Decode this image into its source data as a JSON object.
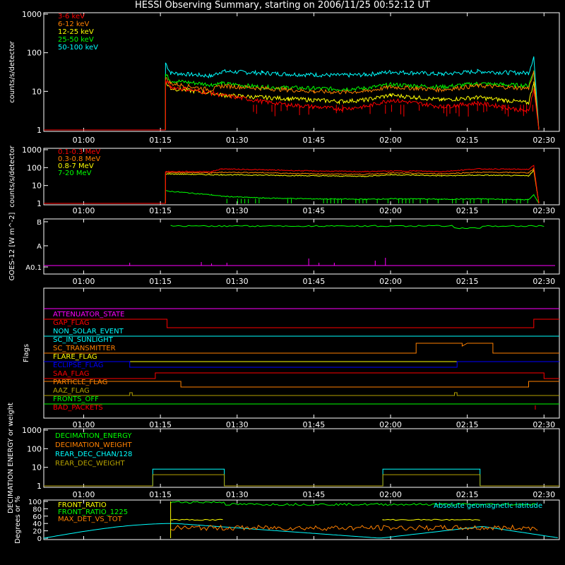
{
  "title": "HESSI Observing Summary, starting on 2006/11/25 00:52:12 UT",
  "time_ticks": [
    "01:00",
    "01:15",
    "01:30",
    "01:45",
    "02:00",
    "02:15",
    "02:30"
  ],
  "colors": {
    "red": "#ff0000",
    "orange": "#ff8000",
    "yellow": "#ffff00",
    "green": "#00ff00",
    "cyan": "#00ffff",
    "magenta": "#ff00ff",
    "blue": "#0000ff",
    "olive": "#b4a000",
    "white": "#ffffff",
    "purple": "#c000ff"
  },
  "chart_data": [
    {
      "type": "line",
      "title": "HESSI Observing Summary, starting on 2006/11/25 00:52:12 UT",
      "ylabel": "counts/s/detector",
      "yscale": "log",
      "ylim": [
        1,
        1000
      ],
      "yticks": [
        "1",
        "10",
        "100",
        "1000"
      ],
      "x": [
        "00:52",
        "01:16",
        "01:17",
        "01:25",
        "01:27",
        "01:35",
        "01:40",
        "01:45",
        "01:50",
        "01:55",
        "02:00",
        "02:05",
        "02:10",
        "02:17",
        "02:22",
        "02:27",
        "02:28",
        "02:29"
      ],
      "series": [
        {
          "name": "3-6 keV",
          "color": "red",
          "values": [
            null,
            20,
            13,
            9,
            8,
            5.5,
            4.5,
            4,
            3.5,
            4,
            6,
            5,
            4,
            5,
            4,
            3,
            12,
            1
          ]
        },
        {
          "name": "6-12 keV",
          "color": "orange",
          "values": [
            null,
            22,
            16,
            11,
            14,
            12,
            11,
            10,
            9.5,
            10,
            13,
            12,
            11,
            14,
            13,
            12,
            30,
            1
          ]
        },
        {
          "name": "12-25 keV",
          "color": "yellow",
          "values": [
            null,
            17,
            12,
            9,
            8,
            7,
            6.5,
            6,
            5.5,
            6,
            8,
            7,
            6,
            7,
            6,
            5,
            18,
            1
          ]
        },
        {
          "name": "25-50 keV",
          "color": "green",
          "values": [
            null,
            28,
            19,
            15,
            16,
            13,
            12.5,
            12,
            11.5,
            12,
            15,
            14,
            13,
            16,
            15,
            14,
            35,
            1
          ]
        },
        {
          "name": "50-100 keV",
          "color": "cyan",
          "values": [
            null,
            55,
            30,
            25,
            33,
            30,
            28,
            27,
            26,
            27,
            32,
            30,
            28,
            33,
            31,
            30,
            80,
            1
          ]
        }
      ]
    },
    {
      "type": "line",
      "ylabel": "counts/s/detector",
      "yscale": "log",
      "ylim": [
        1,
        1000
      ],
      "yticks": [
        "1",
        "10",
        "100",
        "1000"
      ],
      "x": [
        "00:52",
        "01:16",
        "01:25",
        "01:27",
        "01:35",
        "01:45",
        "01:55",
        "02:00",
        "02:05",
        "02:10",
        "02:17",
        "02:27",
        "02:28",
        "02:29"
      ],
      "series": [
        {
          "name": "0.1-0.3 MeV",
          "color": "red",
          "values": [
            null,
            60,
            60,
            85,
            75,
            65,
            60,
            65,
            65,
            60,
            85,
            80,
            130,
            1
          ]
        },
        {
          "name": "0.3-0.8 MeV",
          "color": "orange",
          "values": [
            null,
            55,
            50,
            55,
            52,
            45,
            42,
            50,
            48,
            45,
            55,
            52,
            90,
            1
          ]
        },
        {
          "name": "0.8-7 MeV",
          "color": "yellow",
          "values": [
            null,
            45,
            40,
            40,
            38,
            35,
            33,
            40,
            38,
            35,
            38,
            35,
            70,
            1
          ]
        },
        {
          "name": "7-20 MeV",
          "color": "green",
          "values": [
            null,
            5,
            3,
            2.5,
            2,
            1.8,
            1.7,
            1.8,
            1.8,
            1.7,
            1.8,
            1.6,
            3,
            1
          ]
        }
      ]
    },
    {
      "type": "line",
      "ylabel": "GOES-12 [W m^-2]",
      "yticks": [
        "A0.1",
        "A",
        "B"
      ],
      "series": [
        {
          "name": "GOES B-level",
          "color": "green"
        },
        {
          "name": "GOES A0.1-level",
          "color": "magenta"
        }
      ]
    },
    {
      "type": "table",
      "ylabel": "Flags",
      "flags": [
        {
          "name": "ATTENUATOR_STATE",
          "color": "magenta"
        },
        {
          "name": "GAP_FLAG",
          "color": "red"
        },
        {
          "name": "NON_SOLAR_EVENT",
          "color": "cyan"
        },
        {
          "name": "SC_IN_SUNLIGHT",
          "color": "cyan"
        },
        {
          "name": "SC_TRANSMITTER",
          "color": "orange"
        },
        {
          "name": "FLARE_FLAG",
          "color": "yellow"
        },
        {
          "name": "ECLIPSE_FLAG",
          "color": "blue"
        },
        {
          "name": "SAA_FLAG",
          "color": "red"
        },
        {
          "name": "PARTICLE_FLAG",
          "color": "orange"
        },
        {
          "name": "AAZ_FLAG",
          "color": "olive"
        },
        {
          "name": "FRONTS_OFF",
          "color": "green"
        },
        {
          "name": "BAD_PACKETS",
          "color": "red"
        }
      ]
    },
    {
      "type": "line",
      "ylabel": "DECIMATION ENERGY or weight",
      "yscale": "log",
      "ylim": [
        1,
        1000
      ],
      "yticks": [
        "1",
        "10",
        "100",
        "1000"
      ],
      "series": [
        {
          "name": "DECIMATION_ENERGY",
          "color": "green"
        },
        {
          "name": "DECIMATION_WEIGHT",
          "color": "orange"
        },
        {
          "name": "REAR_DEC_CHAN/128",
          "color": "cyan",
          "values_text": "8 during 01:14-01:28 and 01:59-02:18"
        },
        {
          "name": "REAR_DEC_WEIGHT",
          "color": "olive",
          "values_text": "4 during 01:14-01:28 and 01:59-02:18"
        }
      ]
    },
    {
      "type": "line",
      "ylabel": "Degrees or %",
      "ylim": [
        0,
        100
      ],
      "yticks": [
        "0",
        "20",
        "40",
        "60",
        "80",
        "100"
      ],
      "annotation": "Absolute geomagnetic latitude",
      "series": [
        {
          "name": "FRONT_RATIO",
          "color": "yellow"
        },
        {
          "name": "FRONT_RATIO_1225",
          "color": "green"
        },
        {
          "name": "MAX_DET_VS_TOT",
          "color": "orange"
        },
        {
          "name": "Absolute geomagnetic latitude",
          "color": "cyan"
        }
      ]
    }
  ]
}
